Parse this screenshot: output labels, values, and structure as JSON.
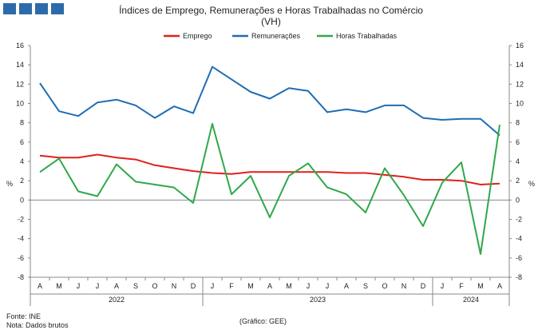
{
  "header": {
    "logo_blocks": 4,
    "title_line1": "Índices de Emprego, Remunerações e Horas Trabalhadas no Comércio",
    "title_line2": "(VH)"
  },
  "footer": {
    "source": "Fonte: INE",
    "note": "Nota: Dados brutos",
    "credit": "(Gráfico: GEE)"
  },
  "chart_data": {
    "type": "line",
    "x": [
      "A",
      "M",
      "J",
      "J",
      "A",
      "S",
      "O",
      "N",
      "D",
      "J",
      "F",
      "M",
      "A",
      "M",
      "J",
      "J",
      "A",
      "S",
      "O",
      "N",
      "D",
      "J",
      "F",
      "M",
      "A"
    ],
    "year_groups": [
      {
        "label": "2022",
        "start": 0,
        "end": 8
      },
      {
        "label": "2023",
        "start": 9,
        "end": 20
      },
      {
        "label": "2024",
        "start": 21,
        "end": 24
      }
    ],
    "ylabel_left": "%",
    "ylabel_right": "%",
    "ylim": [
      -8,
      16
    ],
    "yticks": [
      -8,
      -6,
      -4,
      -2,
      0,
      2,
      4,
      6,
      8,
      10,
      12,
      14,
      16
    ],
    "grid": false,
    "legend_position": "top",
    "series": [
      {
        "name": "Emprego",
        "color": "#e0201b",
        "values": [
          4.6,
          4.4,
          4.4,
          4.7,
          4.4,
          4.2,
          3.6,
          3.3,
          3.0,
          2.8,
          2.7,
          2.9,
          2.9,
          2.9,
          2.9,
          2.9,
          2.8,
          2.8,
          2.6,
          2.4,
          2.1,
          2.1,
          2.0,
          1.6,
          1.7
        ]
      },
      {
        "name": "Remunerações",
        "color": "#1f6db3",
        "values": [
          12.1,
          9.2,
          8.7,
          10.1,
          10.4,
          9.8,
          8.5,
          9.7,
          9.0,
          13.8,
          12.5,
          11.2,
          10.5,
          11.6,
          11.3,
          9.1,
          9.4,
          9.1,
          9.8,
          9.8,
          8.5,
          8.3,
          8.4,
          8.4,
          6.7
        ]
      },
      {
        "name": "Horas Trabalhadas",
        "color": "#2fa84a",
        "values": [
          2.9,
          4.3,
          0.9,
          0.4,
          3.7,
          1.9,
          1.6,
          1.3,
          -0.3,
          7.9,
          0.6,
          2.5,
          -1.8,
          2.5,
          3.8,
          1.3,
          0.6,
          -1.3,
          3.3,
          0.5,
          -2.7,
          1.8,
          3.9,
          -5.6,
          7.8
        ]
      }
    ]
  }
}
